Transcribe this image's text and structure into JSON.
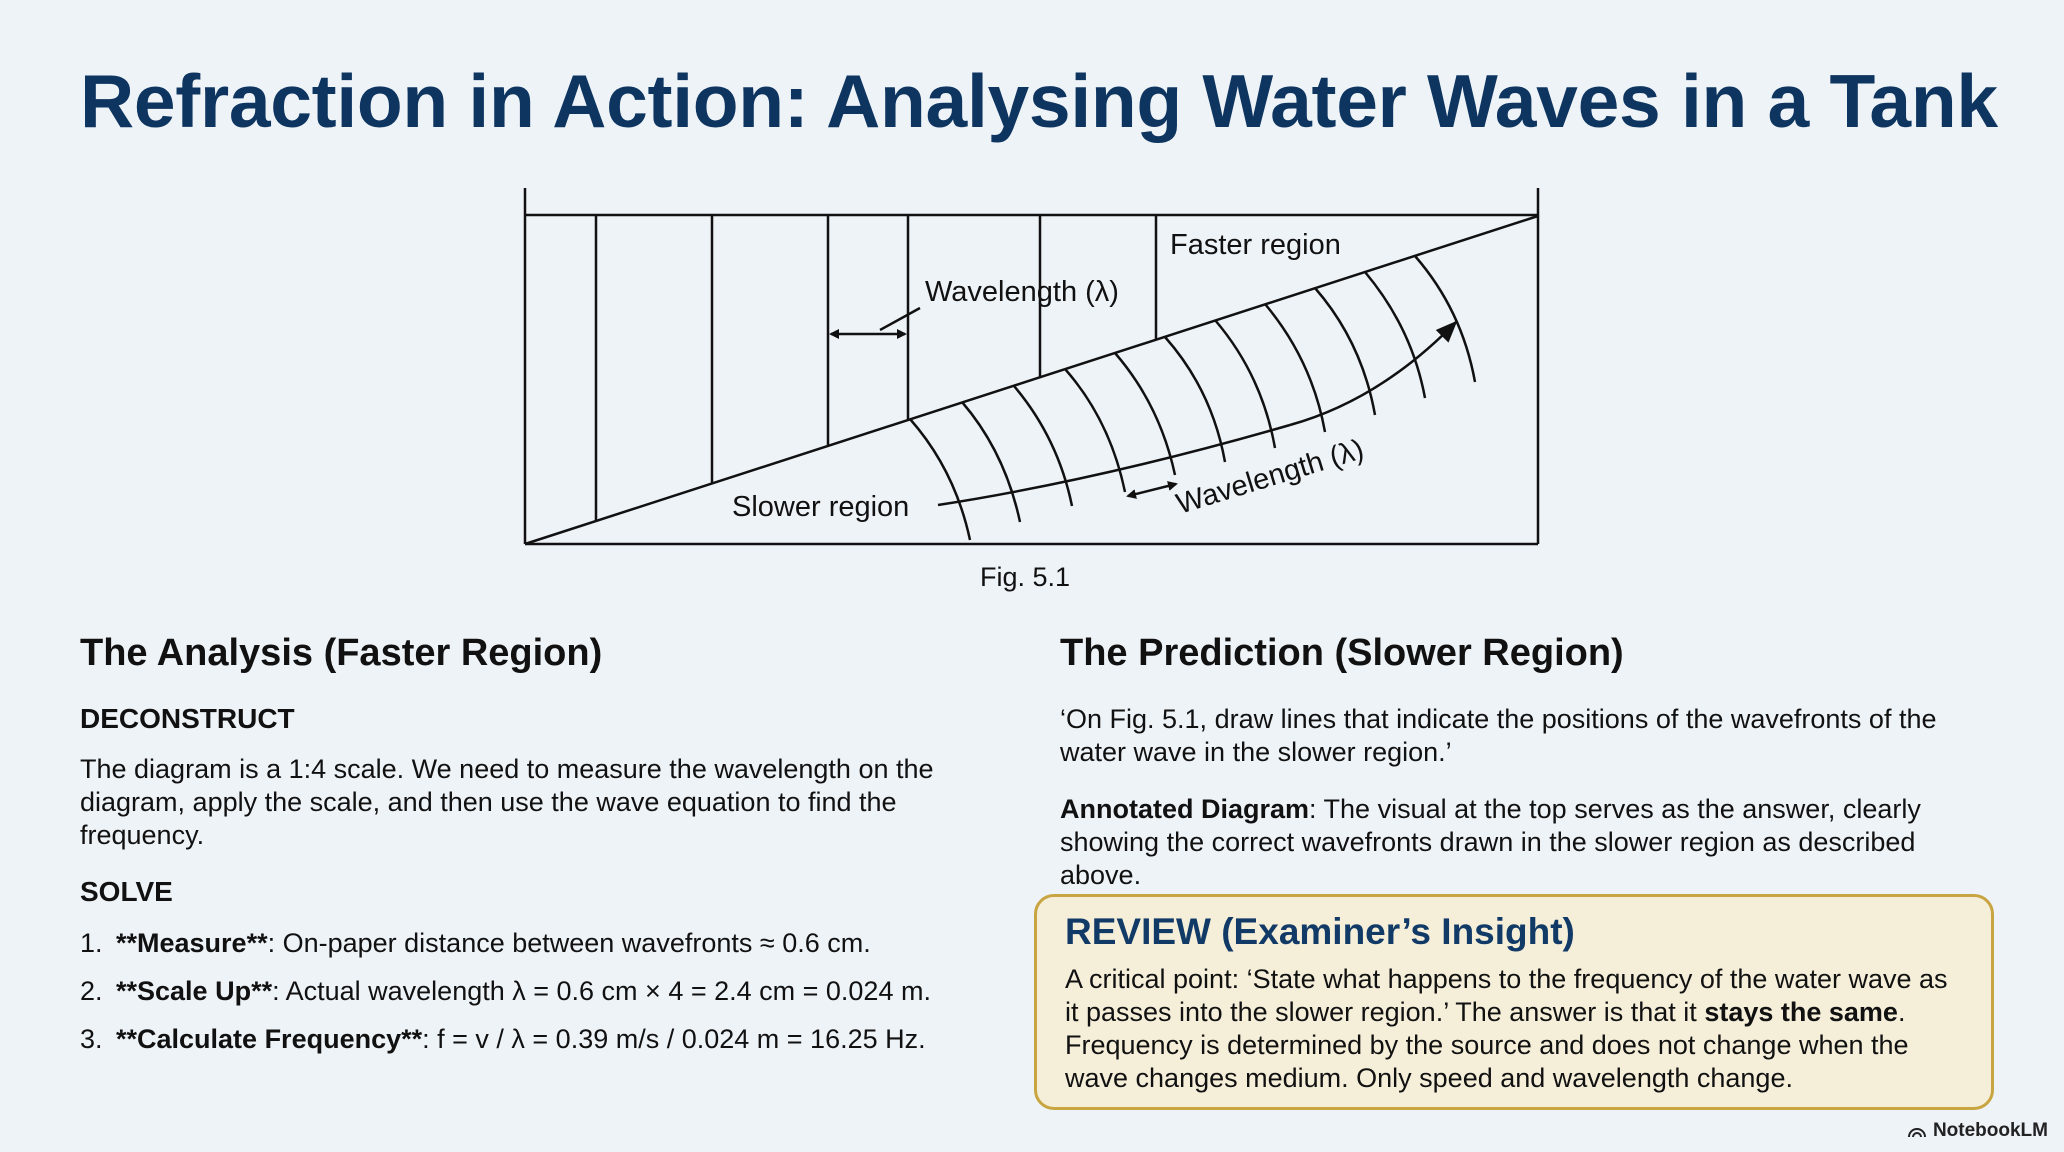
{
  "title": "Refraction in Action: Analysing Water Waves in a Tank",
  "figure": {
    "labels": {
      "faster_region": "Faster region",
      "slower_region": "Slower region",
      "wavelength_top": "Wavelength (λ)",
      "wavelength_bottom": "Wavelength (λ)"
    },
    "caption": "Fig. 5.1"
  },
  "left": {
    "heading": "The Analysis (Faster Region)",
    "deconstruct_label": "DECONSTRUCT",
    "deconstruct_text": "The diagram is a 1:4 scale. We need to measure the wavelength on the diagram, apply the scale, and then use the wave equation to find the frequency.",
    "solve_label": "SOLVE",
    "steps": [
      {
        "num": "1.",
        "bold": "**Measure**",
        "text": ": On-paper distance between wavefronts ≈ 0.6 cm."
      },
      {
        "num": "2.",
        "bold": "**Scale Up**",
        "text": ": Actual wavelength λ = 0.6 cm × 4 = 2.4 cm = 0.024 m."
      },
      {
        "num": "3.",
        "bold": "**Calculate Frequency**",
        "text": ": f = v / λ = 0.39 m/s / 0.024 m = 16.25 Hz."
      }
    ]
  },
  "right": {
    "heading": "The Prediction (Slower Region)",
    "quote": "‘On Fig. 5.1, draw lines that indicate the positions of the wavefronts of the water wave in the slower region.’",
    "annotated_label": "Annotated Diagram",
    "annotated_text": ": The visual at the top serves as the answer, clearly showing the correct wavefronts drawn in the slower region as described above."
  },
  "review": {
    "heading": "REVIEW (Examiner’s Insight)",
    "text_before": "A critical point: ‘State what happens to the frequency of the water wave as it passes into the slower region.’ The answer is that it ",
    "emphasis": "stays the same",
    "text_after": ". Frequency is determined by the source and does not change when the wave changes medium. Only speed and wavelength change."
  },
  "watermark": "NotebookLM"
}
